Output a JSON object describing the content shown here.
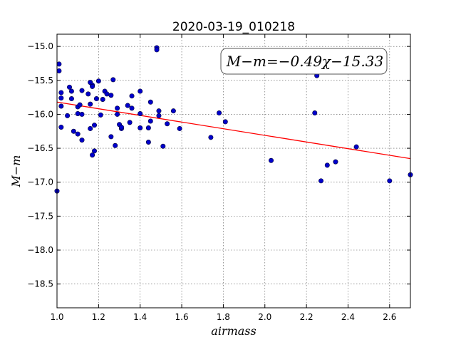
{
  "chart_data": {
    "type": "scatter",
    "title": "2020-03-19_010218",
    "xlabel": "airmass",
    "ylabel": "M−m",
    "xlim": [
      1.0,
      2.7
    ],
    "ylim": [
      -18.85,
      -14.82
    ],
    "y_inverted": true,
    "xticks": [
      1.0,
      1.2,
      1.4,
      1.6,
      1.8,
      2.0,
      2.2,
      2.4,
      2.6
    ],
    "yticks": [
      -15.0,
      -15.5,
      -16.0,
      -16.5,
      -17.0,
      -17.5,
      -18.0,
      -18.5
    ],
    "grid": true,
    "annotation": {
      "text": "M−m=−0.49χ−15.33",
      "placement": "top-right"
    },
    "fit_line": {
      "slope": -0.49,
      "intercept": -15.33,
      "color": "#ff0000"
    },
    "point_color": "#0000cc",
    "points": [
      [
        1.0,
        -17.13
      ],
      [
        1.01,
        -15.26
      ],
      [
        1.01,
        -15.36
      ],
      [
        1.02,
        -15.68
      ],
      [
        1.02,
        -15.76
      ],
      [
        1.02,
        -15.88
      ],
      [
        1.02,
        -16.19
      ],
      [
        1.05,
        -16.02
      ],
      [
        1.06,
        -15.6
      ],
      [
        1.07,
        -15.66
      ],
      [
        1.07,
        -15.77
      ],
      [
        1.08,
        -16.25
      ],
      [
        1.1,
        -15.89
      ],
      [
        1.1,
        -15.99
      ],
      [
        1.1,
        -16.29
      ],
      [
        1.11,
        -15.86
      ],
      [
        1.12,
        -16.0
      ],
      [
        1.12,
        -16.38
      ],
      [
        1.12,
        -15.65
      ],
      [
        1.15,
        -15.7
      ],
      [
        1.16,
        -15.85
      ],
      [
        1.16,
        -15.53
      ],
      [
        1.16,
        -16.21
      ],
      [
        1.17,
        -15.57
      ],
      [
        1.17,
        -15.59
      ],
      [
        1.17,
        -16.6
      ],
      [
        1.18,
        -16.54
      ],
      [
        1.18,
        -16.16
      ],
      [
        1.19,
        -15.77
      ],
      [
        1.2,
        -15.51
      ],
      [
        1.21,
        -16.01
      ],
      [
        1.22,
        -15.78
      ],
      [
        1.23,
        -15.66
      ],
      [
        1.24,
        -15.7
      ],
      [
        1.26,
        -15.72
      ],
      [
        1.26,
        -16.33
      ],
      [
        1.27,
        -15.49
      ],
      [
        1.28,
        -16.46
      ],
      [
        1.29,
        -15.91
      ],
      [
        1.29,
        -16.0
      ],
      [
        1.3,
        -16.15
      ],
      [
        1.31,
        -16.21
      ],
      [
        1.31,
        -16.19
      ],
      [
        1.34,
        -15.87
      ],
      [
        1.35,
        -16.12
      ],
      [
        1.36,
        -15.73
      ],
      [
        1.36,
        -15.91
      ],
      [
        1.4,
        -15.66
      ],
      [
        1.4,
        -15.99
      ],
      [
        1.4,
        -16.2
      ],
      [
        1.44,
        -16.2
      ],
      [
        1.44,
        -16.41
      ],
      [
        1.45,
        -16.1
      ],
      [
        1.45,
        -15.82
      ],
      [
        1.48,
        -15.02
      ],
      [
        1.48,
        -15.05
      ],
      [
        1.49,
        -15.95
      ],
      [
        1.49,
        -16.02
      ],
      [
        1.51,
        -16.47
      ],
      [
        1.53,
        -16.14
      ],
      [
        1.56,
        -15.95
      ],
      [
        1.59,
        -16.21
      ],
      [
        1.74,
        -16.34
      ],
      [
        1.78,
        -15.98
      ],
      [
        1.81,
        -16.11
      ],
      [
        2.03,
        -16.68
      ],
      [
        2.24,
        -15.98
      ],
      [
        2.25,
        -15.43
      ],
      [
        2.27,
        -16.98
      ],
      [
        2.3,
        -16.75
      ],
      [
        2.34,
        -16.7
      ],
      [
        2.44,
        -16.48
      ],
      [
        2.6,
        -16.98
      ],
      [
        2.7,
        -16.89
      ]
    ]
  }
}
